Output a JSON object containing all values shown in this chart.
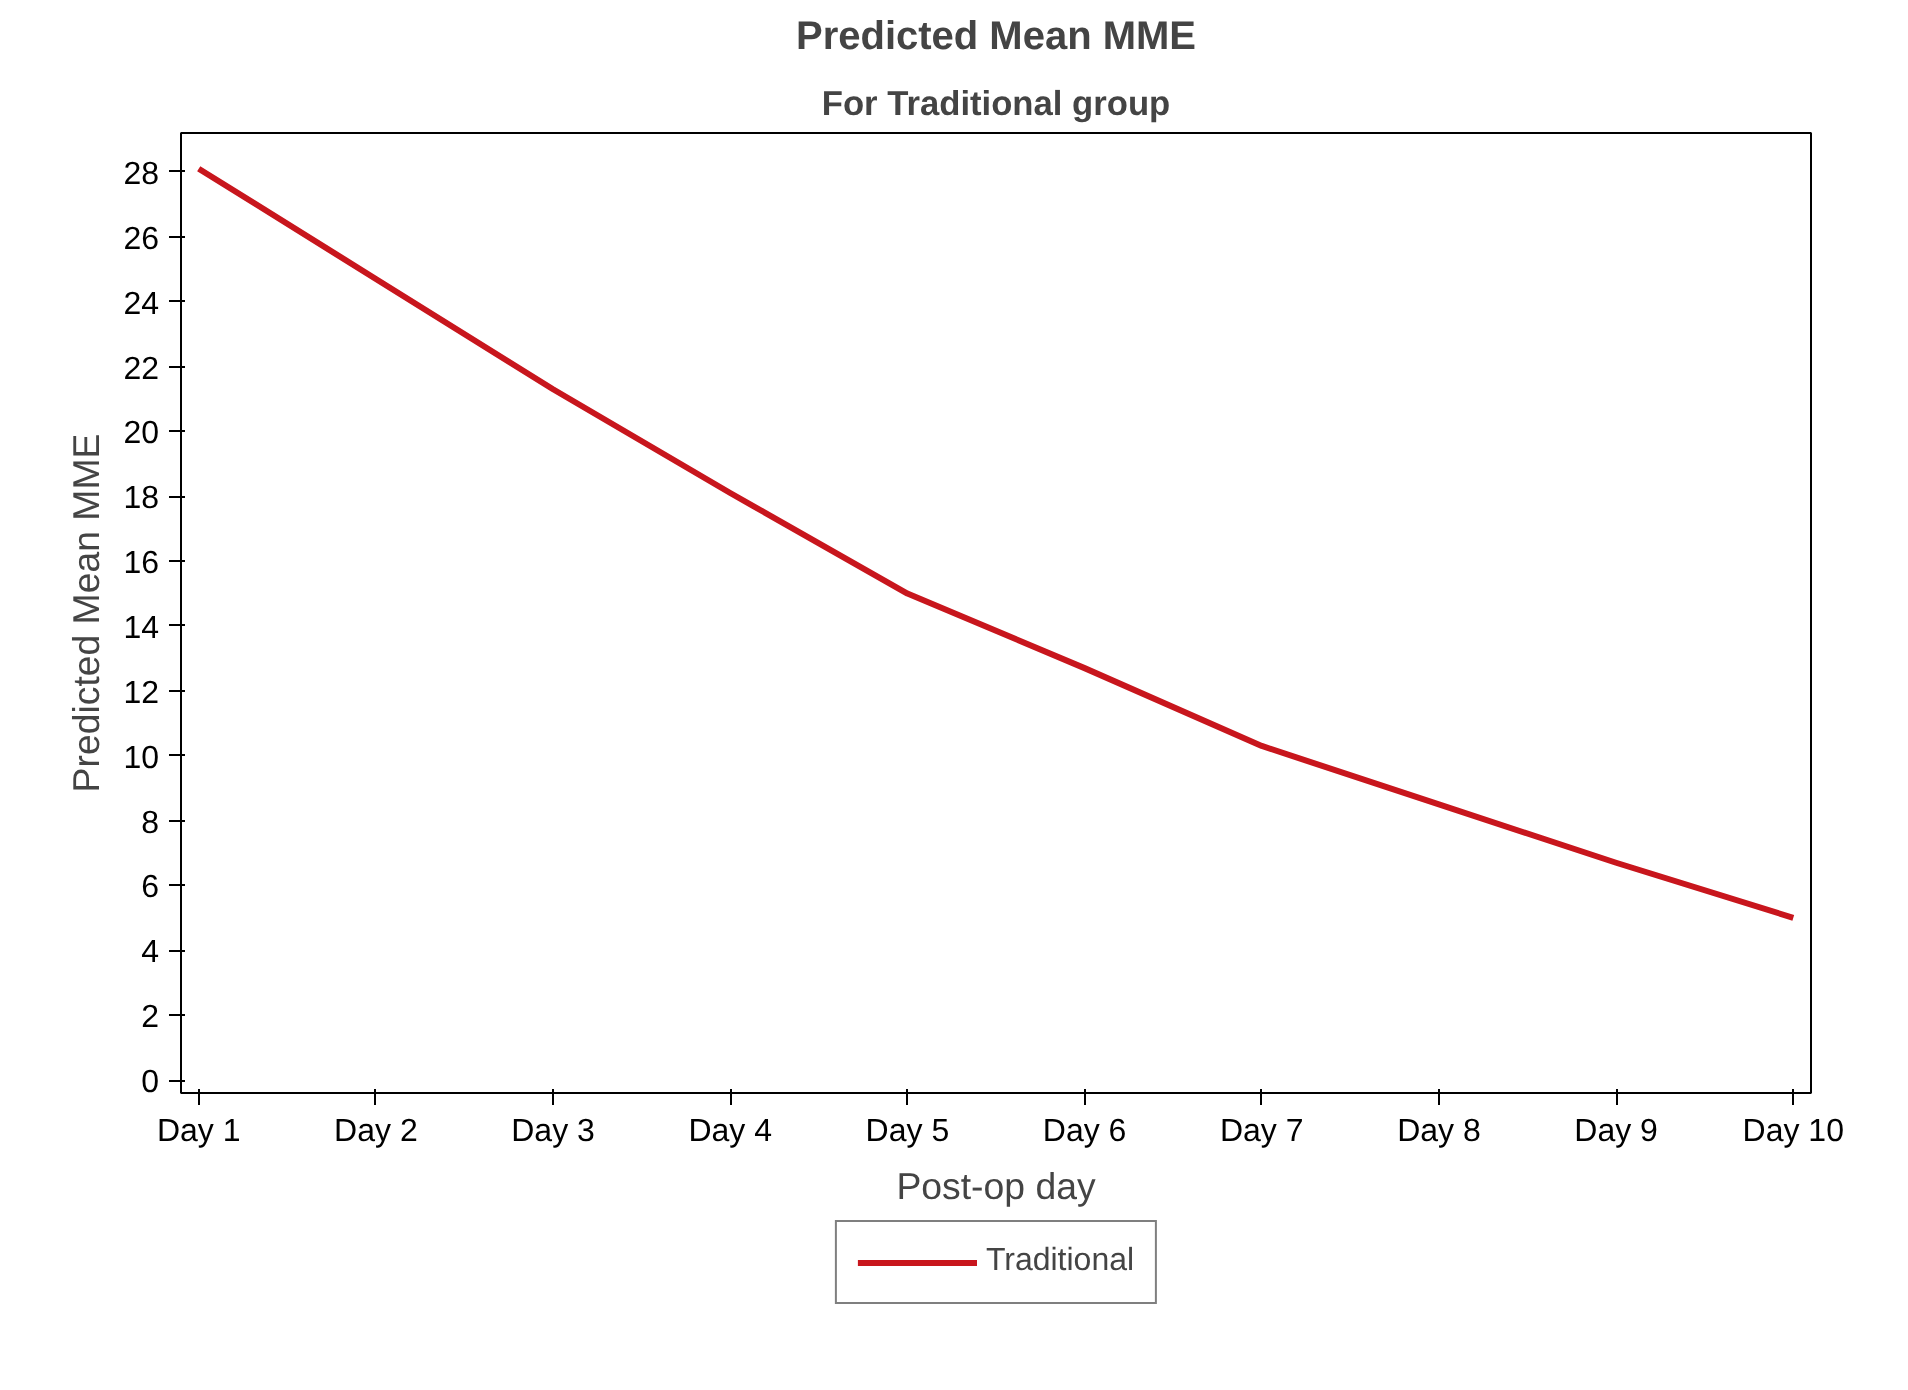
{
  "chart_data": {
    "type": "line",
    "title": "Predicted Mean MME",
    "subtitle": "For Traditional group",
    "xlabel": "Post-op day",
    "ylabel": "Predicted Mean MME",
    "categories": [
      "Day 1",
      "Day 2",
      "Day 3",
      "Day 4",
      "Day 5",
      "Day 6",
      "Day 7",
      "Day 8",
      "Day 9",
      "Day 10"
    ],
    "series": [
      {
        "name": "Traditional",
        "color": "#c8161d",
        "values": [
          28.1,
          24.7,
          21.3,
          18.1,
          15,
          12.7,
          10.3,
          8.5,
          6.7,
          5
        ]
      }
    ],
    "ylim": [
      -0.4,
      29.2
    ],
    "yticks": [
      0,
      2,
      4,
      6,
      8,
      10,
      12,
      14,
      16,
      18,
      20,
      22,
      24,
      26,
      28
    ],
    "legend": "bottom",
    "grid": false,
    "line_style": "solid",
    "marker": "none"
  }
}
